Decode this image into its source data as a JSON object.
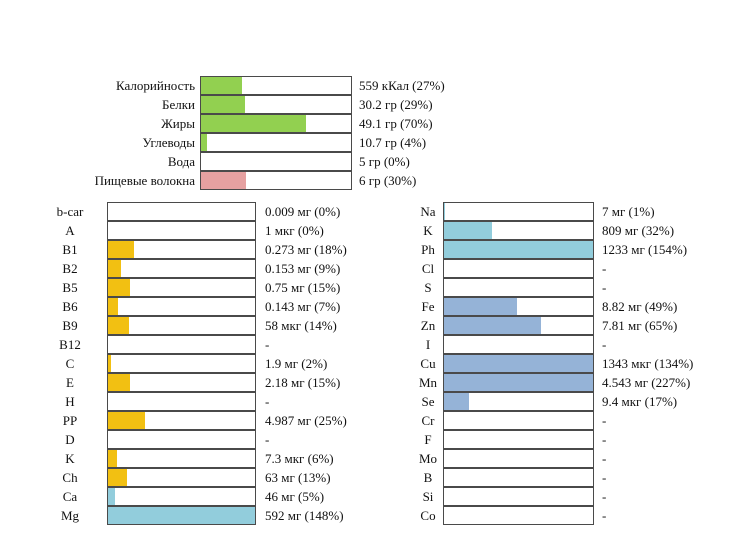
{
  "colors": {
    "macro": "#92d050",
    "fiber": "#e6a1a1",
    "vitamin": "#f2c012",
    "vitamin_over": "#92cddc",
    "mineral": "#95b3d7",
    "mineral_over": "#92cddc",
    "border": "#4a4a4a"
  },
  "chart_data": {
    "type": "bar",
    "orientation": "horizontal",
    "xlim": [
      0,
      100
    ],
    "groups": [
      {
        "name": "macronutrients",
        "rows": [
          {
            "label": "Калорийность",
            "value": 27,
            "text": "559 кКал (27%)",
            "color": "macro"
          },
          {
            "label": "Белки",
            "value": 29,
            "text": "30.2 гр (29%)",
            "color": "macro"
          },
          {
            "label": "Жиры",
            "value": 70,
            "text": "49.1 гр (70%)",
            "color": "macro"
          },
          {
            "label": "Углеводы",
            "value": 4,
            "text": "10.7 гр (4%)",
            "color": "macro"
          },
          {
            "label": "Вода",
            "value": 0,
            "text": "5 гр (0%)",
            "color": "macro"
          },
          {
            "label": "Пищевые волокна",
            "value": 30,
            "text": "6 гр (30%)",
            "color": "fiber"
          }
        ]
      },
      {
        "name": "vitamins",
        "rows": [
          {
            "label": "b-car",
            "value": 0,
            "text": "0.009 мг (0%)",
            "color": "vitamin"
          },
          {
            "label": "A",
            "value": 0,
            "text": "1 мкг (0%)",
            "color": "vitamin"
          },
          {
            "label": "B1",
            "value": 18,
            "text": "0.273 мг (18%)",
            "color": "vitamin"
          },
          {
            "label": "B2",
            "value": 9,
            "text": "0.153 мг (9%)",
            "color": "vitamin"
          },
          {
            "label": "B5",
            "value": 15,
            "text": "0.75 мг (15%)",
            "color": "vitamin"
          },
          {
            "label": "B6",
            "value": 7,
            "text": "0.143 мг (7%)",
            "color": "vitamin"
          },
          {
            "label": "B9",
            "value": 14,
            "text": "58 мкг (14%)",
            "color": "vitamin"
          },
          {
            "label": "B12",
            "value": 0,
            "text": "-",
            "color": "vitamin"
          },
          {
            "label": "C",
            "value": 2,
            "text": "1.9 мг (2%)",
            "color": "vitamin"
          },
          {
            "label": "E",
            "value": 15,
            "text": "2.18 мг (15%)",
            "color": "vitamin"
          },
          {
            "label": "H",
            "value": 0,
            "text": "-",
            "color": "vitamin"
          },
          {
            "label": "PP",
            "value": 25,
            "text": "4.987 мг (25%)",
            "color": "vitamin"
          },
          {
            "label": "D",
            "value": 0,
            "text": "-",
            "color": "vitamin"
          },
          {
            "label": "K",
            "value": 6,
            "text": "7.3 мкг (6%)",
            "color": "vitamin"
          },
          {
            "label": "Ch",
            "value": 13,
            "text": "63 мг (13%)",
            "color": "vitamin"
          },
          {
            "label": "Ca",
            "value": 5,
            "text": "46 мг (5%)",
            "color": "vitamin_over"
          },
          {
            "label": "Mg",
            "value": 148,
            "text": "592 мг (148%)",
            "color": "vitamin_over"
          }
        ]
      },
      {
        "name": "minerals",
        "rows": [
          {
            "label": "Na",
            "value": 1,
            "text": "7 мг (1%)",
            "color": "mineral_over"
          },
          {
            "label": "K",
            "value": 32,
            "text": "809 мг (32%)",
            "color": "mineral_over"
          },
          {
            "label": "Ph",
            "value": 154,
            "text": "1233 мг (154%)",
            "color": "mineral_over"
          },
          {
            "label": "Cl",
            "value": 0,
            "text": "-",
            "color": "mineral"
          },
          {
            "label": "S",
            "value": 0,
            "text": "-",
            "color": "mineral"
          },
          {
            "label": "Fe",
            "value": 49,
            "text": "8.82 мг (49%)",
            "color": "mineral"
          },
          {
            "label": "Zn",
            "value": 65,
            "text": "7.81 мг (65%)",
            "color": "mineral"
          },
          {
            "label": "I",
            "value": 0,
            "text": "-",
            "color": "mineral"
          },
          {
            "label": "Cu",
            "value": 134,
            "text": "1343 мкг (134%)",
            "color": "mineral"
          },
          {
            "label": "Mn",
            "value": 227,
            "text": "4.543 мг (227%)",
            "color": "mineral"
          },
          {
            "label": "Se",
            "value": 17,
            "text": "9.4 мкг (17%)",
            "color": "mineral"
          },
          {
            "label": "Cr",
            "value": 0,
            "text": "-",
            "color": "mineral"
          },
          {
            "label": "F",
            "value": 0,
            "text": "-",
            "color": "mineral"
          },
          {
            "label": "Mo",
            "value": 0,
            "text": "-",
            "color": "mineral"
          },
          {
            "label": "B",
            "value": 0,
            "text": "-",
            "color": "mineral"
          },
          {
            "label": "Si",
            "value": 0,
            "text": "-",
            "color": "mineral"
          },
          {
            "label": "Co",
            "value": 0,
            "text": "-",
            "color": "mineral"
          }
        ]
      }
    ]
  }
}
